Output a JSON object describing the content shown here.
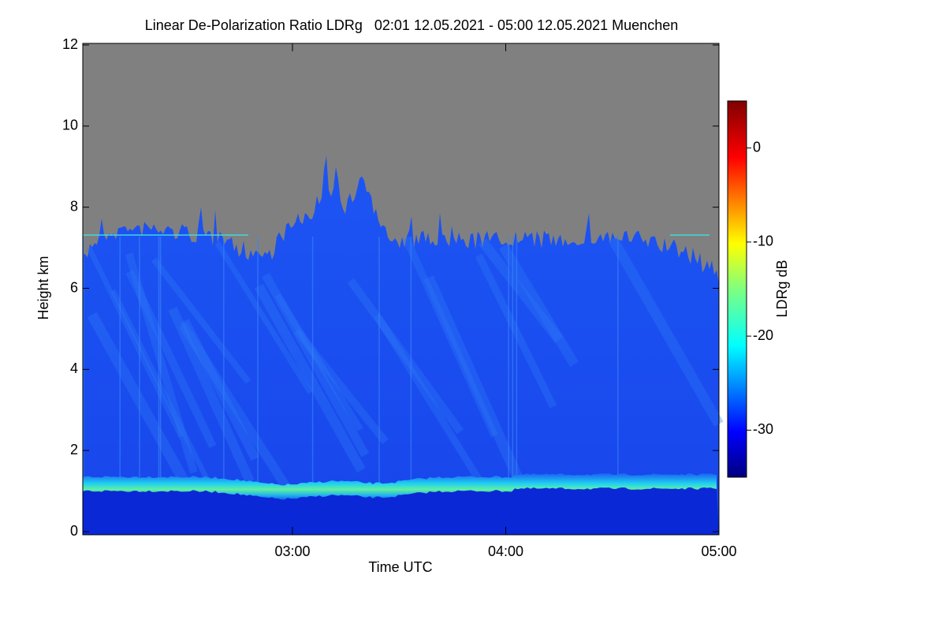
{
  "chart_data": {
    "type": "heatmap",
    "title": "Linear De-Polarization Ratio LDRg   02:01 12.05.2021 - 05:00 12.05.2021 Muenchen",
    "xlabel": "Time UTC",
    "ylabel": "Height km",
    "xlim": [
      2.0167,
      5.0
    ],
    "xticks": [
      {
        "value": 3,
        "label": "03:00"
      },
      {
        "value": 4,
        "label": "04:00"
      },
      {
        "value": 5,
        "label": "05:00"
      }
    ],
    "ylim": [
      0,
      12
    ],
    "yticks": [
      0,
      2,
      4,
      6,
      8,
      10,
      12
    ],
    "colorbar": {
      "label": "LDRg dB",
      "lim": [
        -35,
        5
      ],
      "ticks": [
        0,
        -10,
        -20,
        -30
      ],
      "colorscale": "jet"
    }
  }
}
